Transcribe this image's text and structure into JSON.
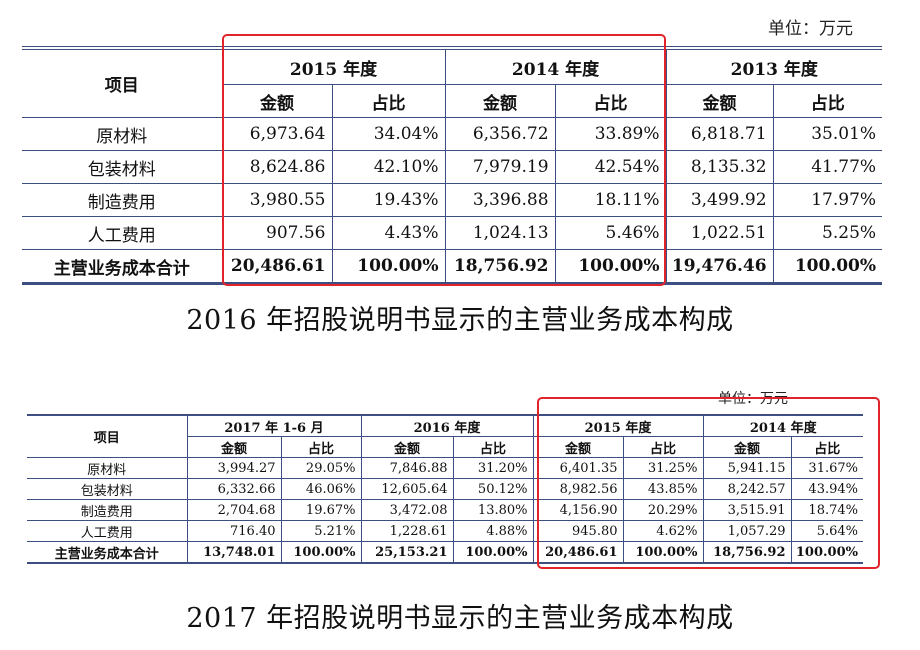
{
  "accent_color": "#e0242a",
  "rule_color": "#3d4f80",
  "table1": {
    "unit": "单位：万元",
    "item_header": "项目",
    "years": [
      "2015 年度",
      "2014 年度",
      "2013 年度"
    ],
    "sub_headers": [
      "金额",
      "占比",
      "金额",
      "占比",
      "金额",
      "占比"
    ],
    "rows": [
      {
        "label": "原材料",
        "values": [
          "6,973.64",
          "34.04%",
          "6,356.72",
          "33.89%",
          "6,818.71",
          "35.01%"
        ]
      },
      {
        "label": "包装材料",
        "values": [
          "8,624.86",
          "42.10%",
          "7,979.19",
          "42.54%",
          "8,135.32",
          "41.77%"
        ]
      },
      {
        "label": "制造费用",
        "values": [
          "3,980.55",
          "19.43%",
          "3,396.88",
          "18.11%",
          "3,499.92",
          "17.97%"
        ]
      },
      {
        "label": "人工费用",
        "values": [
          "907.56",
          "4.43%",
          "1,024.13",
          "5.46%",
          "1,022.51",
          "5.25%"
        ]
      },
      {
        "label": "主营业务成本合计",
        "values": [
          "20,486.61",
          "100.00%",
          "18,756.92",
          "100.00%",
          "19,476.46",
          "100.00%"
        ]
      }
    ],
    "caption": "2016 年招股说明书显示的主营业务成本构成"
  },
  "table2": {
    "unit": "单位：万元",
    "item_header": "项目",
    "years": [
      "2017 年 1-6 月",
      "2016 年度",
      "2015 年度",
      "2014 年度"
    ],
    "sub_headers": [
      "金额",
      "占比",
      "金额",
      "占比",
      "金额",
      "占比",
      "金额",
      "占比"
    ],
    "rows": [
      {
        "label": "原材料",
        "values": [
          "3,994.27",
          "29.05%",
          "7,846.88",
          "31.20%",
          "6,401.35",
          "31.25%",
          "5,941.15",
          "31.67%"
        ]
      },
      {
        "label": "包装材料",
        "values": [
          "6,332.66",
          "46.06%",
          "12,605.64",
          "50.12%",
          "8,982.56",
          "43.85%",
          "8,242.57",
          "43.94%"
        ]
      },
      {
        "label": "制造费用",
        "values": [
          "2,704.68",
          "19.67%",
          "3,472.08",
          "13.80%",
          "4,156.90",
          "20.29%",
          "3,515.91",
          "18.74%"
        ]
      },
      {
        "label": "人工费用",
        "values": [
          "716.40",
          "5.21%",
          "1,228.61",
          "4.88%",
          "945.80",
          "4.62%",
          "1,057.29",
          "5.64%"
        ]
      },
      {
        "label": "主营业务成本合计",
        "values": [
          "13,748.01",
          "100.00%",
          "25,153.21",
          "100.00%",
          "20,486.61",
          "100.00%",
          "18,756.92",
          "100.00%"
        ]
      }
    ],
    "caption": "2017 年招股说明书显示的主营业务成本构成"
  }
}
